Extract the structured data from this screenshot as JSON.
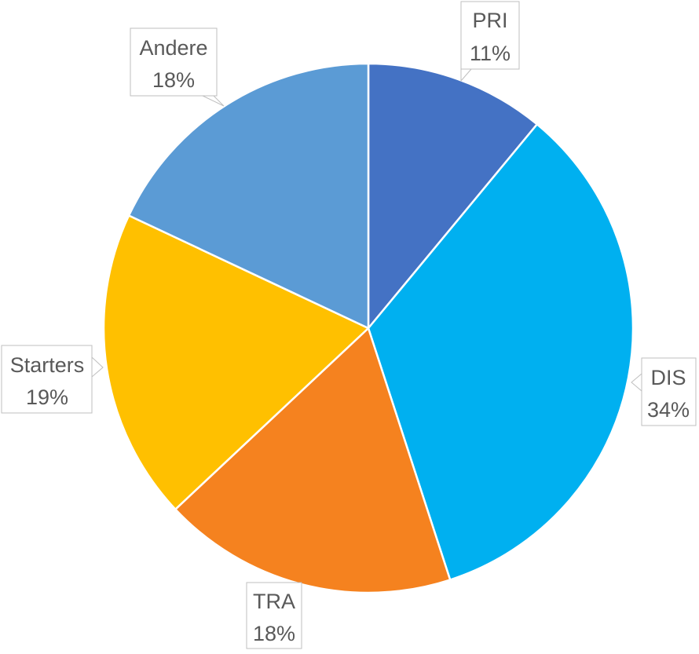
{
  "chart_data": {
    "type": "pie",
    "categories": [
      "PRI",
      "DIS",
      "TRA",
      "Starters",
      "Andere"
    ],
    "values": [
      11,
      34,
      18,
      19,
      18
    ],
    "value_labels": [
      "11%",
      "34%",
      "18%",
      "19%",
      "18%"
    ],
    "colors": [
      "#4472c4",
      "#00b0f0",
      "#f5821f",
      "#ffc000",
      "#5b9bd5"
    ],
    "start_angle_deg": 0,
    "direction": "clockwise",
    "legend": "none",
    "data_label_style": "callout"
  }
}
